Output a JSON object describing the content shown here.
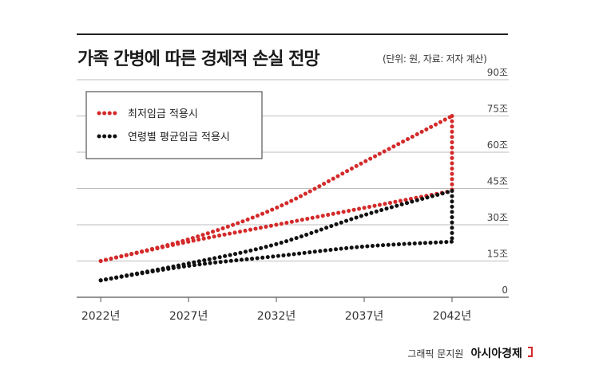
{
  "header": {
    "title": "가족 간병에 따른 경제적 손실 전망",
    "unit_note": "(단위: 원, 자료: 저자 계산)"
  },
  "footer": {
    "credit": "그래픽 문지원",
    "brand": "아시아경제"
  },
  "colors": {
    "red": "#d42a2a",
    "black": "#111111"
  },
  "chart_data": {
    "type": "line",
    "title": "가족 간병에 따른 경제적 손실 전망",
    "xlabel": "",
    "ylabel": "",
    "x_ticks": [
      "2022년",
      "2027년",
      "2032년",
      "2037년",
      "2042년"
    ],
    "y_ticks": [
      "0",
      "15조",
      "30조",
      "45조",
      "60조",
      "75조",
      "90조"
    ],
    "ylim": [
      0,
      90
    ],
    "grid": true,
    "legend_position": "top-left",
    "series": [
      {
        "name": "최저임금 적용시",
        "color": "#d42a2a",
        "lower": {
          "x": [
            2022,
            2027,
            2032,
            2037,
            2042
          ],
          "y": [
            15,
            23,
            30,
            37,
            44
          ]
        },
        "upper": {
          "x": [
            2022,
            2027,
            2032,
            2037,
            2042
          ],
          "y": [
            15,
            24,
            37,
            56,
            75
          ]
        }
      },
      {
        "name": "연령별 평균임금 적용시",
        "color": "#111111",
        "lower": {
          "x": [
            2022,
            2027,
            2032,
            2037,
            2042
          ],
          "y": [
            7,
            13,
            17,
            21,
            23
          ]
        },
        "upper": {
          "x": [
            2022,
            2027,
            2032,
            2037,
            2042
          ],
          "y": [
            7,
            14,
            22,
            34,
            44
          ]
        }
      }
    ]
  }
}
